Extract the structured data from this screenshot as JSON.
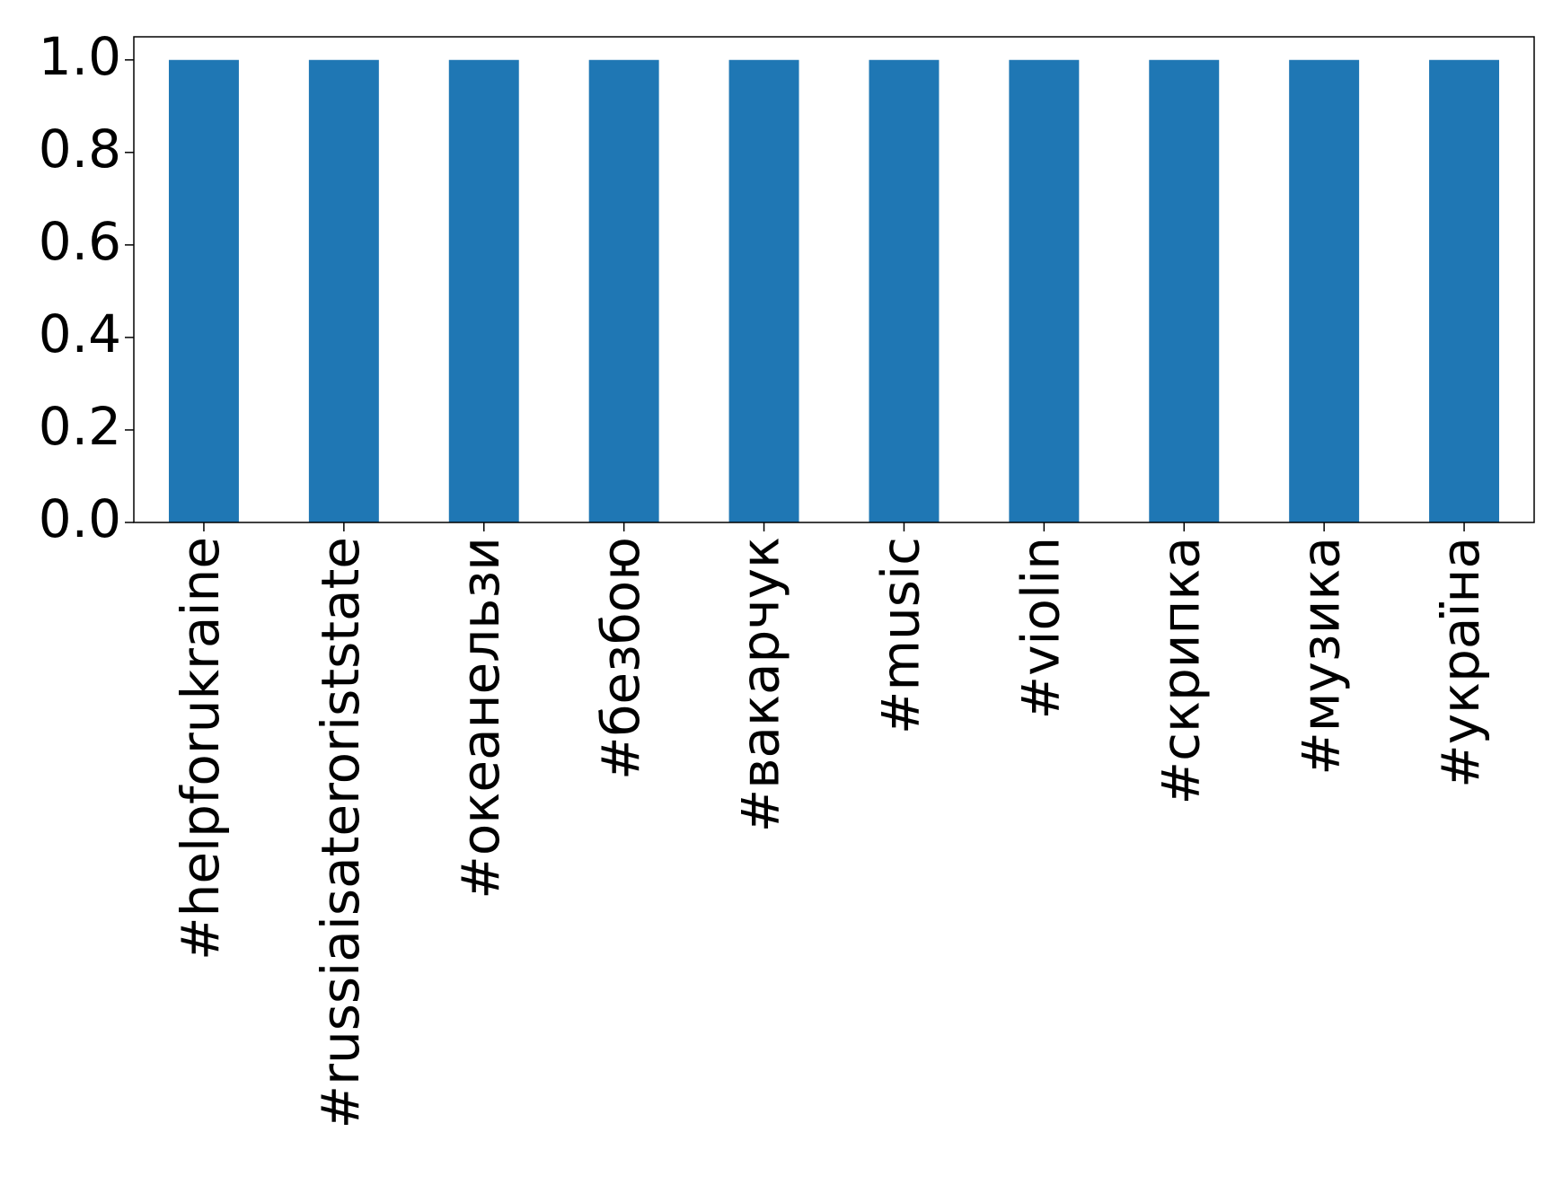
{
  "chart_data": {
    "type": "bar",
    "categories": [
      "#helpforukraine",
      "#russiaisateroriststate",
      "#океанельзи",
      "#безбою",
      "#вакарчук",
      "#music",
      "#violin",
      "#скрипка",
      "#музика",
      "#україна"
    ],
    "values": [
      1,
      1,
      1,
      1,
      1,
      1,
      1,
      1,
      1,
      1
    ],
    "color": "#1f77b4",
    "ylim": [
      0,
      1.05
    ],
    "yticks": [
      {
        "value": 0,
        "label": "0.0"
      },
      {
        "value": 0.2,
        "label": "0.2"
      },
      {
        "value": 0.4,
        "label": "0.4"
      },
      {
        "value": 0.6,
        "label": "0.6"
      },
      {
        "value": 0.8,
        "label": "0.8"
      },
      {
        "value": 1,
        "label": "1.0"
      }
    ],
    "grid": false
  }
}
